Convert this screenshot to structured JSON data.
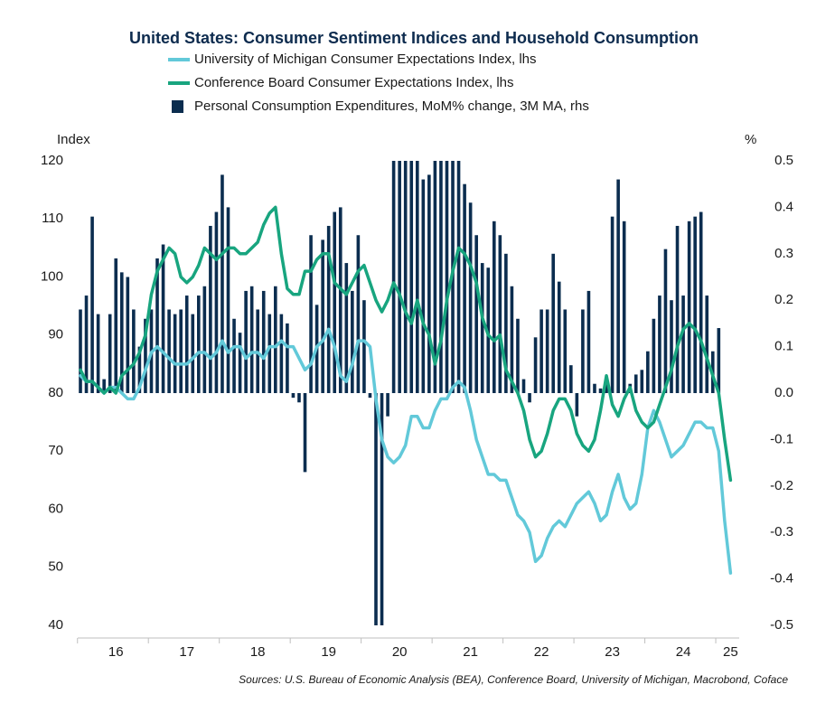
{
  "chart_data": {
    "type": "combo",
    "title": "United States: Consumer Sentiment Indices and Household Consumption",
    "ylabel": "Index",
    "y2label": "%",
    "source": "Sources: U.S. Bureau of Economic Analysis (BEA), Conference Board, University of Michigan, Macrobond, Coface",
    "categories": [
      null,
      null,
      null,
      null,
      null,
      null,
      "16",
      null,
      null,
      null,
      null,
      null,
      null,
      null,
      null,
      null,
      null,
      null,
      "17",
      null,
      null,
      null,
      null,
      null,
      null,
      null,
      null,
      null,
      null,
      null,
      "18",
      null,
      null,
      null,
      null,
      null,
      null,
      null,
      null,
      null,
      null,
      null,
      "19",
      null,
      null,
      null,
      null,
      null,
      null,
      null,
      null,
      null,
      null,
      null,
      "20",
      null,
      null,
      null,
      null,
      null,
      null,
      null,
      null,
      null,
      null,
      null,
      "21",
      null,
      null,
      null,
      null,
      null,
      null,
      null,
      null,
      null,
      null,
      null,
      "22",
      null,
      null,
      null,
      null,
      null,
      null,
      null,
      null,
      null,
      null,
      null,
      "23",
      null,
      null,
      null,
      null,
      null,
      null,
      null,
      null,
      null,
      null,
      null,
      "24",
      null,
      null,
      null,
      null,
      null,
      null,
      null,
      "25"
    ],
    "ylim": [
      40,
      120
    ],
    "yticks": [
      40,
      50,
      60,
      70,
      80,
      90,
      100,
      110,
      120
    ],
    "y2lim": [
      -0.5,
      0.5
    ],
    "y2ticks": [
      -0.5,
      -0.4,
      -0.3,
      -0.2,
      -0.1,
      {
        "value": 0,
        "label": "0.0"
      },
      0.1,
      0.2,
      0.3,
      0.4,
      0.5
    ],
    "series": [
      {
        "name": "Personal Consumption Expenditures, MoM% change, 3M MA, rhs",
        "type": "bar",
        "axis": "y2",
        "color": "#0b2d4f",
        "values": [
          0.18,
          0.21,
          0.38,
          0.17,
          0.03,
          0.17,
          0.29,
          0.26,
          0.25,
          0.18,
          0.1,
          0.16,
          0.18,
          0.29,
          0.32,
          0.18,
          0.17,
          0.18,
          0.21,
          0.17,
          0.21,
          0.23,
          0.36,
          0.39,
          0.47,
          0.4,
          0.16,
          0.13,
          0.22,
          0.23,
          0.18,
          0.22,
          0.17,
          0.23,
          0.17,
          0.15,
          -0.01,
          -0.02,
          -0.17,
          0.34,
          0.19,
          0.33,
          0.36,
          0.39,
          0.4,
          0.28,
          0.22,
          0.34,
          0.2,
          -0.01,
          -0.5,
          -0.5,
          -0.05,
          0.5,
          0.5,
          0.5,
          0.5,
          0.5,
          0.46,
          0.47,
          0.5,
          0.5,
          0.5,
          0.5,
          0.5,
          0.45,
          0.41,
          0.34,
          0.28,
          0.27,
          0.37,
          0.34,
          0.3,
          0.23,
          0.16,
          0.03,
          -0.02,
          0.12,
          0.18,
          0.18,
          0.3,
          0.24,
          0.18,
          0.06,
          -0.05,
          0.18,
          0.22,
          0.02,
          0.01,
          0.02,
          0.38,
          0.46,
          0.37,
          0.02,
          0.04,
          0.05,
          0.09,
          0.16,
          0.21,
          0.31,
          0.2,
          0.36,
          0.21,
          0.37,
          0.38,
          0.39,
          0.21,
          0.09,
          0.14,
          null,
          null
        ]
      },
      {
        "name": "University of Michigan Consumer Expectations Index, lhs",
        "type": "line",
        "axis": "y",
        "color": "#62c9d9",
        "values": [
          83,
          82,
          82,
          81,
          80,
          81,
          81,
          80,
          79,
          79,
          81,
          84,
          87,
          88,
          87,
          86,
          85,
          85,
          85,
          86,
          87,
          87,
          86,
          87,
          89,
          87,
          88,
          88,
          86,
          87,
          87,
          86,
          88,
          88,
          89,
          88,
          88,
          86,
          84,
          85,
          88,
          89,
          91,
          88,
          83,
          82,
          85,
          89,
          89,
          88,
          79,
          72,
          69,
          68,
          69,
          71,
          76,
          76,
          74,
          74,
          77,
          79,
          79,
          81,
          82,
          81,
          77,
          72,
          69,
          66,
          66,
          65,
          65,
          62,
          59,
          58,
          56,
          51,
          52,
          55,
          57,
          58,
          57,
          59,
          61,
          62,
          63,
          61,
          58,
          59,
          63,
          66,
          62,
          60,
          61,
          66,
          74,
          77,
          75,
          72,
          69,
          70,
          71,
          73,
          75,
          75,
          74,
          74,
          70,
          58,
          49
        ]
      },
      {
        "name": "Conference Board Consumer Expectations Index, lhs",
        "type": "line",
        "axis": "y",
        "color": "#18a57f",
        "values": [
          84,
          82,
          82,
          81,
          80,
          81,
          80,
          83,
          84,
          85,
          87,
          90,
          97,
          101,
          103,
          105,
          104,
          100,
          99,
          100,
          102,
          105,
          104,
          103,
          104,
          105,
          105,
          104,
          104,
          105,
          106,
          109,
          111,
          112,
          104,
          98,
          97,
          97,
          101,
          101,
          103,
          104,
          104,
          99,
          98,
          97,
          99,
          101,
          102,
          99,
          96,
          94,
          96,
          99,
          97,
          94,
          92,
          96,
          92,
          90,
          85,
          89,
          96,
          101,
          105,
          104,
          102,
          99,
          93,
          90,
          89,
          90,
          84,
          82,
          80,
          77,
          72,
          69,
          70,
          73,
          77,
          79,
          79,
          77,
          73,
          71,
          70,
          72,
          77,
          83,
          78,
          76,
          79,
          81,
          77,
          75,
          74,
          75,
          78,
          81,
          84,
          88,
          91,
          92,
          91,
          89,
          86,
          83,
          80,
          72,
          65
        ]
      }
    ]
  }
}
